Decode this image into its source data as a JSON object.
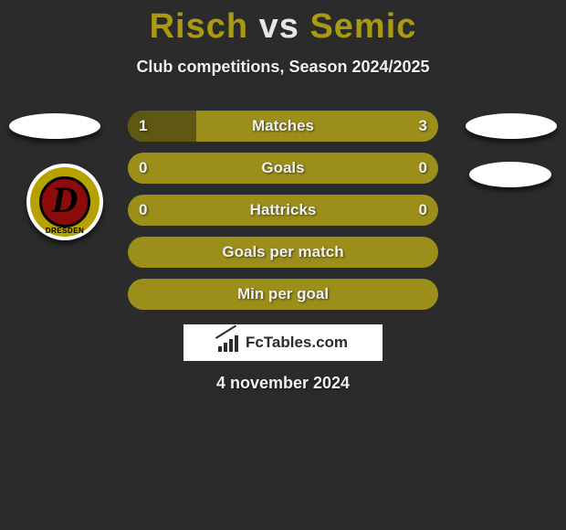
{
  "title": {
    "player1": "Risch",
    "vs": "vs",
    "player2": "Semic",
    "player1_color": "#a89a13",
    "player2_color": "#a89a13"
  },
  "subtitle": "Club competitions, Season 2024/2025",
  "badge": {
    "letter": "D",
    "bottom_text": "DRESDEN",
    "ring_color": "#b6a100",
    "inner_color": "#8e0b0b"
  },
  "bars": [
    {
      "label": "Matches",
      "left": "1",
      "right": "3",
      "left_fill_pct": 22,
      "right_fill_pct": 0
    },
    {
      "label": "Goals",
      "left": "0",
      "right": "0",
      "left_fill_pct": 0,
      "right_fill_pct": 0
    },
    {
      "label": "Hattricks",
      "left": "0",
      "right": "0",
      "left_fill_pct": 0,
      "right_fill_pct": 0
    },
    {
      "label": "Goals per match",
      "left": "",
      "right": "",
      "left_fill_pct": 0,
      "right_fill_pct": 0
    },
    {
      "label": "Min per goal",
      "left": "",
      "right": "",
      "left_fill_pct": 0,
      "right_fill_pct": 0
    }
  ],
  "bar_style": {
    "background_color": "#9b8f1a",
    "fill_color": "#5f5812",
    "label_color": "#f0f0f0"
  },
  "watermark": {
    "text": "FcTables.com"
  },
  "date": "4 november 2024",
  "colors": {
    "page_background": "#2b2b2b",
    "text": "#f0f0f0"
  }
}
